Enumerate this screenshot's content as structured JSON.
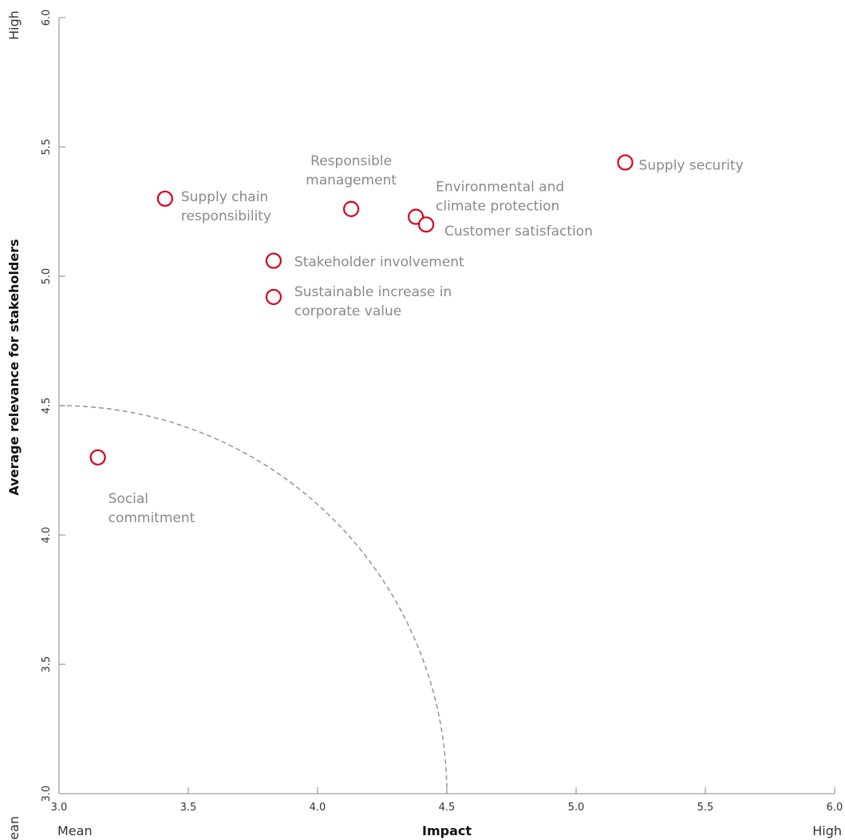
{
  "chart_data": {
    "type": "scatter",
    "xlabel": "Impact",
    "ylabel": "Average relevance for stakeholders",
    "xlim": [
      3.0,
      6.0
    ],
    "ylim": [
      3.0,
      6.0
    ],
    "x_ticks": [
      "3.0",
      "3.5",
      "4.0",
      "4.5",
      "5.0",
      "5.5",
      "6.0"
    ],
    "y_ticks": [
      "3.0",
      "3.5",
      "4.0",
      "4.5",
      "5.0",
      "5.5",
      "6.0"
    ],
    "x_low_label": "Mean",
    "x_high_label": "High",
    "y_low_label": "Mean",
    "y_high_label": "High",
    "threshold_radius": 1.5,
    "grid": false,
    "marker_color": "#d7001e",
    "label_color": "#8a8a8a",
    "points": [
      {
        "label": [
          "Supply security"
        ],
        "x": 5.19,
        "y": 5.44
      },
      {
        "label": [
          "Responsible",
          "management"
        ],
        "x": 4.13,
        "y": 5.26
      },
      {
        "label": [
          "Environmental and",
          "climate protection"
        ],
        "x": 4.38,
        "y": 5.23
      },
      {
        "label": [
          "Customer satisfaction"
        ],
        "x": 4.42,
        "y": 5.2
      },
      {
        "label": [
          "Supply chain",
          "responsibility"
        ],
        "x": 3.41,
        "y": 5.3
      },
      {
        "label": [
          "Stakeholder involvement"
        ],
        "x": 3.83,
        "y": 5.06
      },
      {
        "label": [
          "Sustainable increase in",
          "corporate value"
        ],
        "x": 3.83,
        "y": 4.92
      },
      {
        "label": [
          "Social",
          "commitment"
        ],
        "x": 3.15,
        "y": 4.3
      }
    ]
  }
}
